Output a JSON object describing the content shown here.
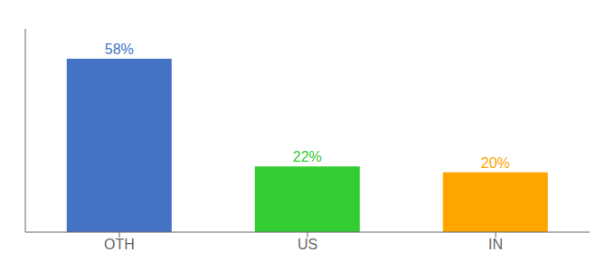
{
  "chart_data": {
    "type": "bar",
    "categories": [
      "OTH",
      "US",
      "IN"
    ],
    "values": [
      58,
      22,
      20
    ],
    "value_labels": [
      "58%",
      "22%",
      "20%"
    ],
    "colors": [
      "#4472C4",
      "#33CC33",
      "#FFA500"
    ],
    "ylim": [
      0,
      68
    ],
    "data_labels": true,
    "tick_labels": "x"
  }
}
